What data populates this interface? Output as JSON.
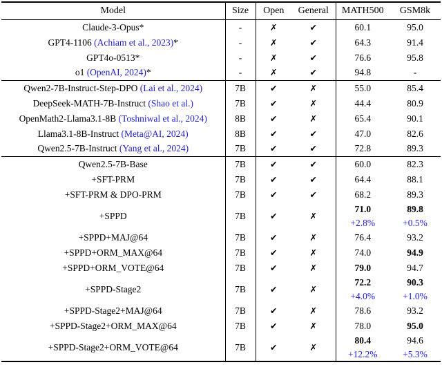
{
  "glyphs": {
    "check": "✔",
    "cross": "✗"
  },
  "colors": {
    "citation": "#2323cc",
    "delta": "#1b1be6"
  },
  "table": {
    "columns": [
      "Model",
      "Size",
      "Open",
      "General",
      "MATH500",
      "GSM8k"
    ],
    "sections": [
      {
        "name": "closed-models",
        "rows": [
          {
            "model": "Claude-3-Opus*",
            "size": "-",
            "open": false,
            "general": true,
            "math500": {
              "value": "60.1"
            },
            "gsm8k": {
              "value": "95.0"
            }
          },
          {
            "model": "GPT4-1106 ",
            "citation": "(Achiam et al., 2023)",
            "suffix": "*",
            "size": "-",
            "open": false,
            "general": true,
            "math500": {
              "value": "64.3"
            },
            "gsm8k": {
              "value": "91.4"
            }
          },
          {
            "model": "GPT4o-0513*",
            "size": "-",
            "open": false,
            "general": true,
            "math500": {
              "value": "76.6"
            },
            "gsm8k": {
              "value": "95.8"
            }
          },
          {
            "model": "o1 ",
            "citation": "(OpenAI, 2024)",
            "suffix": "*",
            "size": "-",
            "open": false,
            "general": true,
            "math500": {
              "value": "94.8"
            },
            "gsm8k": {
              "value": "-"
            }
          }
        ]
      },
      {
        "name": "open-baselines",
        "rows": [
          {
            "model": "Qwen2-7B-Instruct-Step-DPO ",
            "citation": "(Lai et al., 2024)",
            "size": "7B",
            "open": true,
            "general": false,
            "math500": {
              "value": "55.0"
            },
            "gsm8k": {
              "value": "85.4"
            }
          },
          {
            "model": "DeepSeek-MATH-7B-Instruct ",
            "citation": "(Shao et al.)",
            "size": "7B",
            "open": true,
            "general": false,
            "math500": {
              "value": "44.4"
            },
            "gsm8k": {
              "value": "80.9"
            }
          },
          {
            "model": "OpenMath2-Llama3.1-8B ",
            "citation": "(Toshniwal et al., 2024)",
            "size": "8B",
            "open": true,
            "general": false,
            "math500": {
              "value": "65.4"
            },
            "gsm8k": {
              "value": "90.1"
            }
          },
          {
            "model": "Llama3.1-8B-Instruct ",
            "citation": "(Meta@AI, 2024)",
            "size": "8B",
            "open": true,
            "general": true,
            "math500": {
              "value": "47.0"
            },
            "gsm8k": {
              "value": "82.6"
            }
          },
          {
            "model": "Qwen2.5-7B-Instruct ",
            "citation": "(Yang et al., 2024)",
            "size": "7B",
            "open": true,
            "general": true,
            "math500": {
              "value": "72.8"
            },
            "gsm8k": {
              "value": "89.3"
            }
          }
        ]
      },
      {
        "name": "ours",
        "rows": [
          {
            "model": "Qwen2.5-7B-Base",
            "size": "7B",
            "open": true,
            "general": true,
            "math500": {
              "value": "60.0"
            },
            "gsm8k": {
              "value": "82.3"
            }
          },
          {
            "model": "+SFT-PRM",
            "size": "7B",
            "open": true,
            "general": true,
            "math500": {
              "value": "64.4"
            },
            "gsm8k": {
              "value": "88.1"
            }
          },
          {
            "model": "+SFT-PRM & DPO-PRM",
            "size": "7B",
            "open": true,
            "general": true,
            "math500": {
              "value": "68.2"
            },
            "gsm8k": {
              "value": "89.3"
            }
          },
          {
            "model": "+SPPD",
            "size": "7B",
            "open": true,
            "general": false,
            "math500": {
              "value": "71.0",
              "bold": true,
              "delta": "+2.8%"
            },
            "gsm8k": {
              "value": "89.8",
              "bold": true,
              "delta": "+0.5%"
            }
          },
          {
            "model": "+SPPD+MAJ@64",
            "size": "7B",
            "open": true,
            "general": false,
            "math500": {
              "value": "76.4"
            },
            "gsm8k": {
              "value": "93.2"
            }
          },
          {
            "model": "+SPPD+ORM_MAX@64",
            "size": "7B",
            "open": true,
            "general": false,
            "math500": {
              "value": "74.0"
            },
            "gsm8k": {
              "value": "94.9",
              "bold": true
            }
          },
          {
            "model": "+SPPD+ORM_VOTE@64",
            "size": "7B",
            "open": true,
            "general": false,
            "math500": {
              "value": "79.0",
              "bold": true
            },
            "gsm8k": {
              "value": "94.7"
            }
          },
          {
            "model": "+SPPD-Stage2",
            "size": "7B",
            "open": true,
            "general": false,
            "math500": {
              "value": "72.2",
              "bold": true,
              "delta": "+4.0%"
            },
            "gsm8k": {
              "value": "90.3",
              "bold": true,
              "delta": "+1.0%"
            }
          },
          {
            "model": "+SPPD-Stage2+MAJ@64",
            "size": "7B",
            "open": true,
            "general": false,
            "math500": {
              "value": "78.6"
            },
            "gsm8k": {
              "value": "93.2"
            }
          },
          {
            "model": "+SPPD-Stage2+ORM_MAX@64",
            "size": "7B",
            "open": true,
            "general": false,
            "math500": {
              "value": "78.0"
            },
            "gsm8k": {
              "value": "95.0",
              "bold": true
            }
          },
          {
            "model": "+SPPD-Stage2+ORM_VOTE@64",
            "size": "7B",
            "open": true,
            "general": false,
            "math500": {
              "value": "80.4",
              "bold": true,
              "delta": "+12.2%"
            },
            "gsm8k": {
              "value": "94.6",
              "delta": "+5.3%"
            }
          }
        ]
      }
    ]
  }
}
